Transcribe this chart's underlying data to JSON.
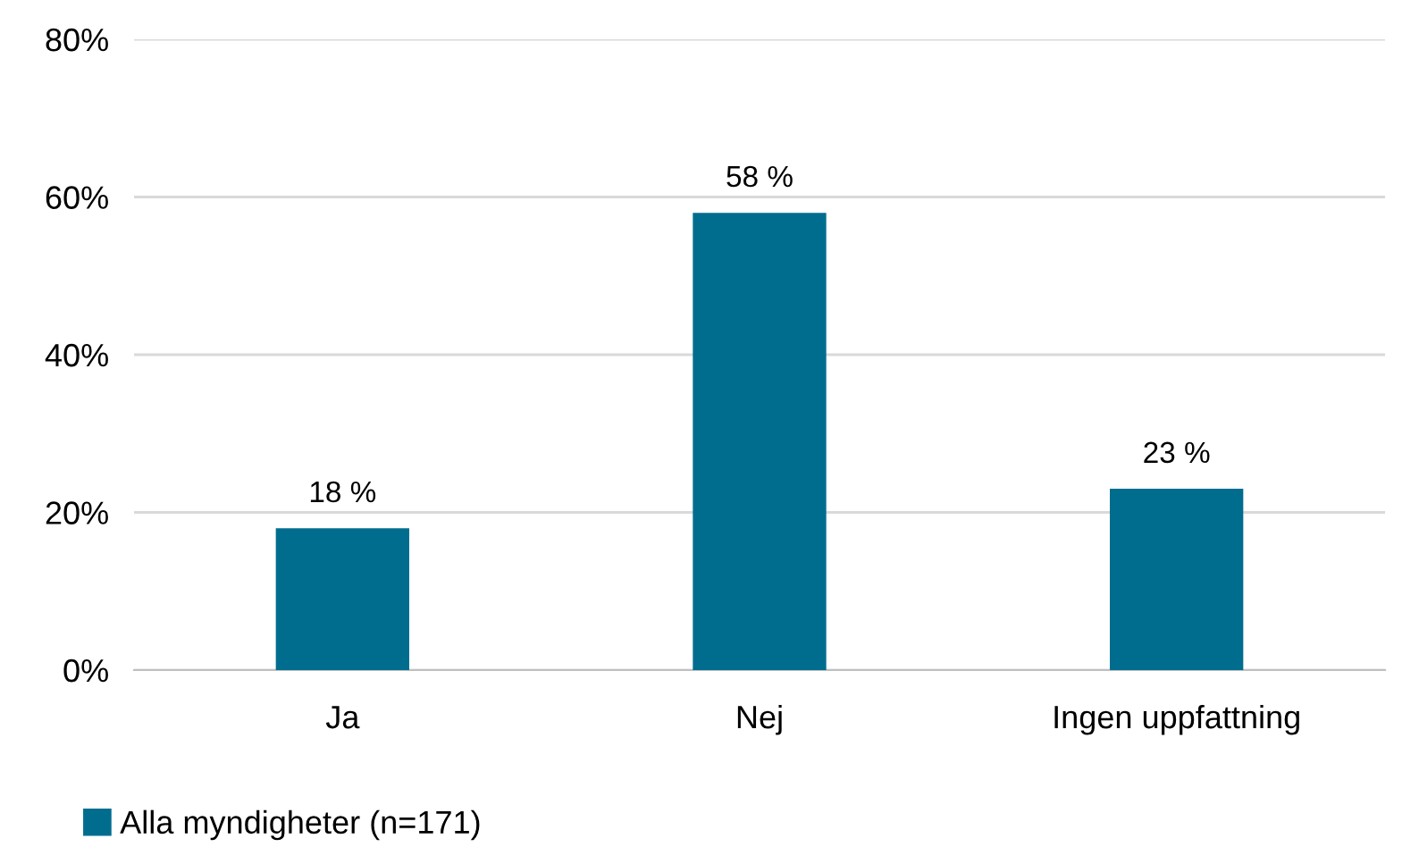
{
  "chart_data": {
    "type": "bar",
    "categories": [
      "Ja",
      "Nej",
      "Ingen uppfattning"
    ],
    "series": [
      {
        "name": "Alla myndigheter (n=171)",
        "color": "#006d8f",
        "values": [
          18,
          58,
          23
        ],
        "value_labels": [
          "18 %",
          "58 %",
          "23 %"
        ]
      }
    ],
    "ylim": [
      0,
      80
    ],
    "yticks": [
      {
        "value": 0,
        "label": "0%"
      },
      {
        "value": 20,
        "label": "20%"
      },
      {
        "value": 40,
        "label": "40%"
      },
      {
        "value": 60,
        "label": "60%"
      },
      {
        "value": 80,
        "label": "80%"
      }
    ],
    "grid": "y",
    "legend": "bottom left"
  }
}
